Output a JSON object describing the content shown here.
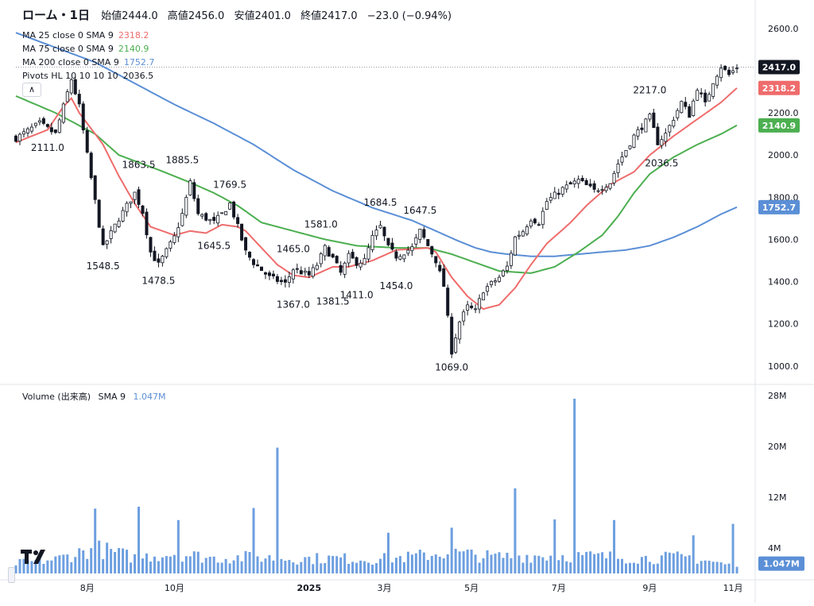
{
  "header": {
    "title": "ローム・1日",
    "open_label": "始値",
    "open": "2444.0",
    "high_label": "高値",
    "high": "2456.0",
    "low_label": "安値",
    "low": "2401.0",
    "close_label": "終値",
    "close": "2417.0",
    "change": "−23.0 (−0.94%)"
  },
  "indicators": [
    {
      "label": "MA 25 close 0 SMA 9",
      "value": "2318.2",
      "color": "#ef6c6c"
    },
    {
      "label": "MA 75 close 0 SMA 9",
      "value": "2140.9",
      "color": "#4caf50"
    },
    {
      "label": "MA 200 close 0 SMA 9",
      "value": "1752.7",
      "color": "#5b8fd6"
    },
    {
      "label": "Pivots HL 10 10 10 10",
      "value": "2036.5",
      "color": "#131722"
    }
  ],
  "volume_legend": {
    "label": "Volume (出来高)",
    "sma": "SMA 9",
    "value": "1.047M",
    "color": "#5b8fd6"
  },
  "chart_data": {
    "type": "candlestick",
    "price_axis": {
      "ticks": [
        1000,
        1200,
        1400,
        1600,
        1800,
        2000,
        2200,
        2400,
        2600
      ],
      "tick_labels": [
        "1000.0",
        "1200.0",
        "1400.0",
        "1600.0",
        "1800.0",
        "2000.0",
        "2200.0",
        "2400.0",
        "2600.0"
      ],
      "ylim": [
        920,
        2660
      ]
    },
    "volume_axis": {
      "ticks": [
        4,
        12,
        20,
        28
      ],
      "tick_labels": [
        "4M",
        "12M",
        "20M",
        "28M"
      ],
      "ylim": [
        0,
        29
      ]
    },
    "x_axis": {
      "labels": [
        "8月",
        "10月",
        "2025",
        "3月",
        "5月",
        "7月",
        "9月",
        "11月"
      ],
      "label_bar_index": [
        18,
        40,
        74,
        93,
        115,
        137,
        160,
        181
      ],
      "bar_count": 183,
      "bar_index_range": [
        0,
        185
      ]
    },
    "price_path": [
      [
        0,
        2080
      ],
      [
        6,
        2150
      ],
      [
        10,
        2100
      ],
      [
        14,
        2360
      ],
      [
        16,
        2230
      ],
      [
        18,
        2000
      ],
      [
        20,
        1780
      ],
      [
        22,
        1560
      ],
      [
        26,
        1700
      ],
      [
        30,
        1820
      ],
      [
        32,
        1730
      ],
      [
        34,
        1540
      ],
      [
        36,
        1480
      ],
      [
        40,
        1610
      ],
      [
        42,
        1720
      ],
      [
        44,
        1870
      ],
      [
        46,
        1720
      ],
      [
        50,
        1680
      ],
      [
        52,
        1720
      ],
      [
        54,
        1770
      ],
      [
        56,
        1660
      ],
      [
        58,
        1540
      ],
      [
        60,
        1490
      ],
      [
        64,
        1420
      ],
      [
        68,
        1390
      ],
      [
        70,
        1460
      ],
      [
        74,
        1430
      ],
      [
        76,
        1480
      ],
      [
        78,
        1560
      ],
      [
        80,
        1510
      ],
      [
        82,
        1440
      ],
      [
        84,
        1520
      ],
      [
        86,
        1490
      ],
      [
        88,
        1500
      ],
      [
        90,
        1610
      ],
      [
        92,
        1660
      ],
      [
        94,
        1560
      ],
      [
        96,
        1520
      ],
      [
        100,
        1560
      ],
      [
        102,
        1640
      ],
      [
        104,
        1570
      ],
      [
        106,
        1500
      ],
      [
        108,
        1380
      ],
      [
        110,
        1070
      ],
      [
        112,
        1210
      ],
      [
        114,
        1280
      ],
      [
        116,
        1260
      ],
      [
        118,
        1360
      ],
      [
        122,
        1420
      ],
      [
        124,
        1470
      ],
      [
        126,
        1610
      ],
      [
        128,
        1640
      ],
      [
        130,
        1700
      ],
      [
        132,
        1680
      ],
      [
        134,
        1780
      ],
      [
        138,
        1840
      ],
      [
        142,
        1880
      ],
      [
        146,
        1830
      ],
      [
        150,
        1870
      ],
      [
        152,
        1960
      ],
      [
        156,
        2090
      ],
      [
        160,
        2180
      ],
      [
        162,
        2060
      ],
      [
        164,
        2100
      ],
      [
        168,
        2250
      ],
      [
        170,
        2190
      ],
      [
        172,
        2320
      ],
      [
        174,
        2240
      ],
      [
        176,
        2350
      ],
      [
        178,
        2420
      ],
      [
        180,
        2380
      ],
      [
        182,
        2417
      ]
    ],
    "volume_path": [
      [
        0,
        1.6
      ],
      [
        10,
        2.2
      ],
      [
        20,
        4.0
      ],
      [
        30,
        2.5
      ],
      [
        40,
        3.2
      ],
      [
        50,
        2.4
      ],
      [
        60,
        2.6
      ],
      [
        70,
        2.3
      ],
      [
        80,
        2.4
      ],
      [
        90,
        2.2
      ],
      [
        100,
        2.6
      ],
      [
        108,
        3.3
      ],
      [
        114,
        3.0
      ],
      [
        120,
        2.6
      ],
      [
        130,
        2.8
      ],
      [
        140,
        2.8
      ],
      [
        150,
        2.6
      ],
      [
        160,
        2.4
      ],
      [
        170,
        2.6
      ],
      [
        182,
        1.047
      ]
    ],
    "volume_spikes": [
      [
        20,
        10.2
      ],
      [
        31,
        10.5
      ],
      [
        41,
        8.4
      ],
      [
        60,
        10.3
      ],
      [
        66,
        19.8
      ],
      [
        94,
        6.4
      ],
      [
        110,
        7.2
      ],
      [
        126,
        13.4
      ],
      [
        136,
        8.5
      ],
      [
        141,
        27.5
      ],
      [
        151,
        8.4
      ],
      [
        171,
        6.0
      ],
      [
        181,
        7.8
      ]
    ],
    "moving_averages": [
      {
        "name": "MA 25",
        "color": "#ef6c6c",
        "points": [
          [
            0,
            2060
          ],
          [
            8,
            2120
          ],
          [
            12,
            2230
          ],
          [
            14,
            2270
          ],
          [
            16,
            2200
          ],
          [
            22,
            2050
          ],
          [
            26,
            1900
          ],
          [
            30,
            1770
          ],
          [
            34,
            1660
          ],
          [
            40,
            1620
          ],
          [
            44,
            1640
          ],
          [
            48,
            1630
          ],
          [
            52,
            1670
          ],
          [
            56,
            1660
          ],
          [
            58,
            1640
          ],
          [
            62,
            1560
          ],
          [
            66,
            1480
          ],
          [
            70,
            1430
          ],
          [
            74,
            1420
          ],
          [
            80,
            1470
          ],
          [
            84,
            1470
          ],
          [
            90,
            1500
          ],
          [
            96,
            1550
          ],
          [
            104,
            1560
          ],
          [
            106,
            1540
          ],
          [
            110,
            1420
          ],
          [
            114,
            1330
          ],
          [
            118,
            1270
          ],
          [
            122,
            1290
          ],
          [
            126,
            1370
          ],
          [
            130,
            1480
          ],
          [
            134,
            1580
          ],
          [
            140,
            1680
          ],
          [
            144,
            1760
          ],
          [
            150,
            1860
          ],
          [
            156,
            1920
          ],
          [
            160,
            2000
          ],
          [
            166,
            2090
          ],
          [
            172,
            2170
          ],
          [
            178,
            2250
          ],
          [
            182,
            2318
          ]
        ]
      },
      {
        "name": "MA 75",
        "color": "#4caf50",
        "points": [
          [
            0,
            2280
          ],
          [
            10,
            2200
          ],
          [
            20,
            2100
          ],
          [
            26,
            2000
          ],
          [
            36,
            1930
          ],
          [
            44,
            1870
          ],
          [
            50,
            1820
          ],
          [
            56,
            1760
          ],
          [
            62,
            1680
          ],
          [
            70,
            1640
          ],
          [
            78,
            1600
          ],
          [
            86,
            1570
          ],
          [
            96,
            1560
          ],
          [
            104,
            1560
          ],
          [
            110,
            1530
          ],
          [
            116,
            1490
          ],
          [
            122,
            1450
          ],
          [
            130,
            1440
          ],
          [
            136,
            1470
          ],
          [
            142,
            1540
          ],
          [
            148,
            1620
          ],
          [
            152,
            1710
          ],
          [
            156,
            1820
          ],
          [
            160,
            1910
          ],
          [
            166,
            1990
          ],
          [
            172,
            2050
          ],
          [
            178,
            2100
          ],
          [
            182,
            2141
          ]
        ]
      },
      {
        "name": "MA 200",
        "color": "#5b8fd6",
        "points": [
          [
            0,
            2580
          ],
          [
            10,
            2510
          ],
          [
            20,
            2440
          ],
          [
            30,
            2340
          ],
          [
            40,
            2240
          ],
          [
            50,
            2150
          ],
          [
            60,
            2050
          ],
          [
            70,
            1930
          ],
          [
            80,
            1830
          ],
          [
            90,
            1750
          ],
          [
            100,
            1690
          ],
          [
            106,
            1640
          ],
          [
            112,
            1590
          ],
          [
            116,
            1560
          ],
          [
            120,
            1540
          ],
          [
            124,
            1530
          ],
          [
            130,
            1520
          ],
          [
            136,
            1520
          ],
          [
            142,
            1530
          ],
          [
            148,
            1540
          ],
          [
            154,
            1550
          ],
          [
            160,
            1570
          ],
          [
            166,
            1610
          ],
          [
            172,
            1660
          ],
          [
            178,
            1720
          ],
          [
            182,
            1753
          ]
        ]
      }
    ],
    "pivot_labels": [
      {
        "text": "2111.0",
        "bar": 8,
        "price": 2111.0,
        "side": "low"
      },
      {
        "text": "1863.5",
        "bar": 31,
        "price": 1863.5,
        "side": "high"
      },
      {
        "text": "1885.5",
        "bar": 42,
        "price": 1885.5,
        "side": "high"
      },
      {
        "text": "1769.5",
        "bar": 54,
        "price": 1769.5,
        "side": "high"
      },
      {
        "text": "1548.5",
        "bar": 22,
        "price": 1548.5,
        "side": "low"
      },
      {
        "text": "1478.5",
        "bar": 36,
        "price": 1478.5,
        "side": "low"
      },
      {
        "text": "1645.5",
        "bar": 50,
        "price": 1645.5,
        "side": "low"
      },
      {
        "text": "1465.0",
        "bar": 70,
        "price": 1465.0,
        "side": "high"
      },
      {
        "text": "1581.0",
        "bar": 77,
        "price": 1581.0,
        "side": "high"
      },
      {
        "text": "1684.5",
        "bar": 92,
        "price": 1684.5,
        "side": "high"
      },
      {
        "text": "1647.5",
        "bar": 102,
        "price": 1647.5,
        "side": "high"
      },
      {
        "text": "1367.0",
        "bar": 70,
        "price": 1367.0,
        "side": "low"
      },
      {
        "text": "1381.5",
        "bar": 80,
        "price": 1381.5,
        "side": "low"
      },
      {
        "text": "1411.0",
        "bar": 86,
        "price": 1411.0,
        "side": "low"
      },
      {
        "text": "1454.0",
        "bar": 96,
        "price": 1454.0,
        "side": "low"
      },
      {
        "text": "1069.0",
        "bar": 110,
        "price": 1069.0,
        "side": "low"
      },
      {
        "text": "2217.0",
        "bar": 160,
        "price": 2217.0,
        "side": "high"
      },
      {
        "text": "2036.5",
        "bar": 163,
        "price": 2036.5,
        "side": "low"
      }
    ],
    "price_badges": [
      {
        "text": "2417.0",
        "price": 2417.0,
        "color": "#131722"
      },
      {
        "text": "2318.2",
        "price": 2318.2,
        "color": "#ef6c6c"
      },
      {
        "text": "2140.9",
        "price": 2140.9,
        "color": "#4caf50"
      },
      {
        "text": "1752.7",
        "price": 1752.7,
        "color": "#5b8fd6"
      }
    ],
    "volume_badge": {
      "text": "1.047M",
      "value": 1.047,
      "color": "#5b8fd6"
    },
    "grid": false
  }
}
